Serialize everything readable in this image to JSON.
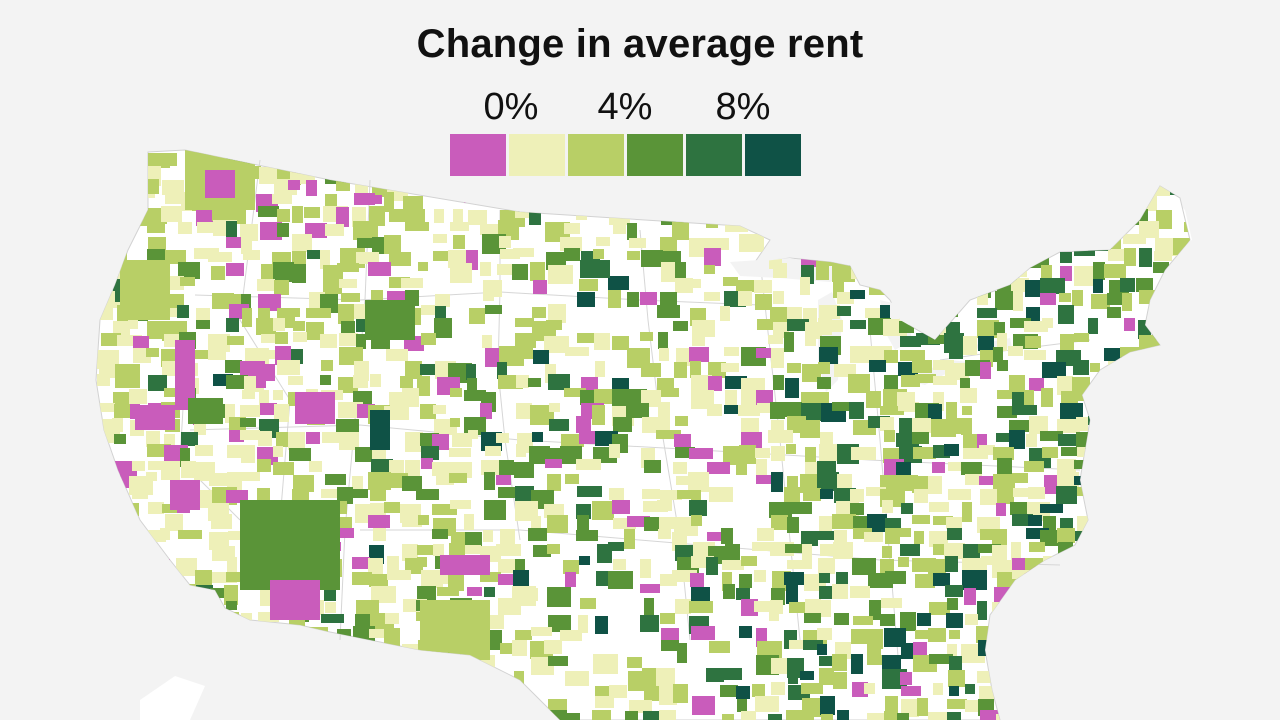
{
  "title": "Change in average rent",
  "legend": {
    "labels": [
      "0%",
      "4%",
      "8%"
    ],
    "bins": [
      {
        "range": "below 0%",
        "color": "#c95cbb"
      },
      {
        "range": "0% to 2%",
        "color": "#eef0b8"
      },
      {
        "range": "2% to 4%",
        "color": "#b8cf66"
      },
      {
        "range": "4% to 6%",
        "color": "#5a9438"
      },
      {
        "range": "6% to 8%",
        "color": "#2e7340"
      },
      {
        "range": "8% and above",
        "color": "#0f5246"
      }
    ]
  },
  "colors": {
    "background": "#f3f3f3",
    "land": "#ffffff",
    "neighbors": "#ffffff",
    "borders": "#d2d2d2"
  }
}
